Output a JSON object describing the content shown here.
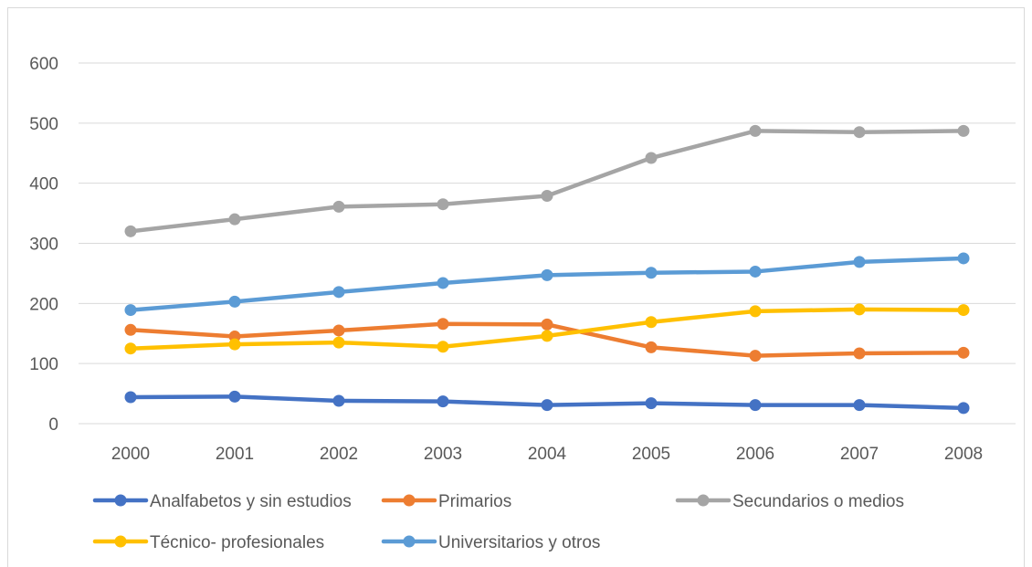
{
  "chart_data": {
    "type": "line",
    "title": "",
    "xlabel": "",
    "ylabel": "",
    "categories": [
      "2000",
      "2001",
      "2002",
      "2003",
      "2004",
      "2005",
      "2006",
      "2007",
      "2008"
    ],
    "ylim": [
      0,
      600
    ],
    "yticks": [
      "0",
      "100",
      "200",
      "300",
      "400",
      "500",
      "600"
    ],
    "grid": "horizontal",
    "legend_position": "bottom",
    "series": [
      {
        "name": "Analfabetos y sin estudios",
        "color": "#4472c4",
        "values": [
          44,
          45,
          38,
          37,
          31,
          34,
          31,
          31,
          26
        ]
      },
      {
        "name": "Primarios",
        "color": "#ed7d31",
        "values": [
          156,
          145,
          155,
          166,
          165,
          127,
          113,
          117,
          118
        ]
      },
      {
        "name": "Secundarios o medios",
        "color": "#a5a5a5",
        "values": [
          320,
          340,
          361,
          365,
          379,
          442,
          487,
          485,
          487
        ]
      },
      {
        "name": "Técnico- profesionales",
        "color": "#ffc000",
        "values": [
          125,
          132,
          135,
          128,
          146,
          169,
          187,
          190,
          189
        ]
      },
      {
        "name": "Universitarios y otros",
        "color": "#5b9bd5",
        "values": [
          189,
          203,
          219,
          234,
          247,
          251,
          253,
          269,
          275
        ]
      }
    ]
  }
}
